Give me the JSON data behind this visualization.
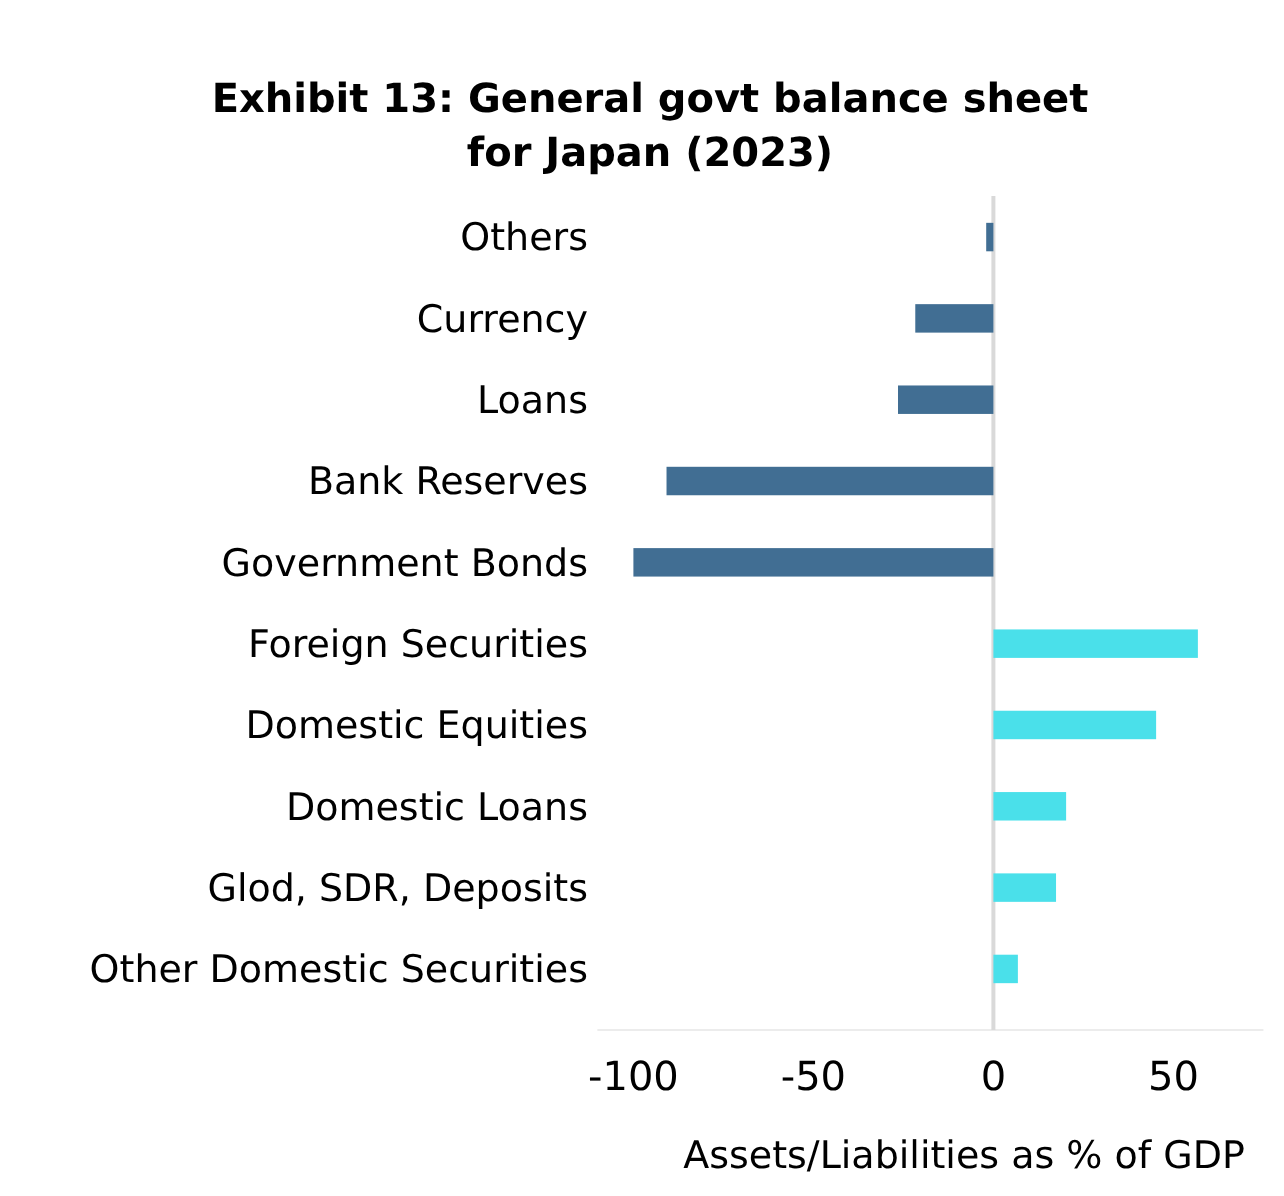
{
  "chart_data": {
    "type": "bar",
    "orientation": "horizontal",
    "title": "Exhibit 13: General govt balance sheet\nfor Japan (2023)",
    "xlabel": "Assets/Liabilities as % of GDP",
    "categories": [
      "Others",
      "Currency",
      "Loans",
      "Bank Reserves",
      "Government Bonds",
      "Foreign Securities",
      "Domestic Equities",
      "Domestic Loans",
      "Glod, SDR, Deposits",
      "Other Domestic Securities"
    ],
    "values": [
      -2,
      -21.7,
      -26.5,
      -90.8,
      -100,
      56.8,
      45.2,
      20.2,
      17.4,
      6.8
    ],
    "colors": [
      "#416e93",
      "#416e93",
      "#416e93",
      "#416e93",
      "#416e93",
      "#4ae0ea",
      "#4ae0ea",
      "#4ae0ea",
      "#4ae0ea",
      "#4ae0ea"
    ],
    "xlim": [
      -110,
      75
    ],
    "xticks": [
      -100,
      -50,
      0,
      50
    ],
    "ref_lines": [
      {
        "axis": "x",
        "value": 0,
        "color": "#d9d9d9"
      }
    ]
  }
}
